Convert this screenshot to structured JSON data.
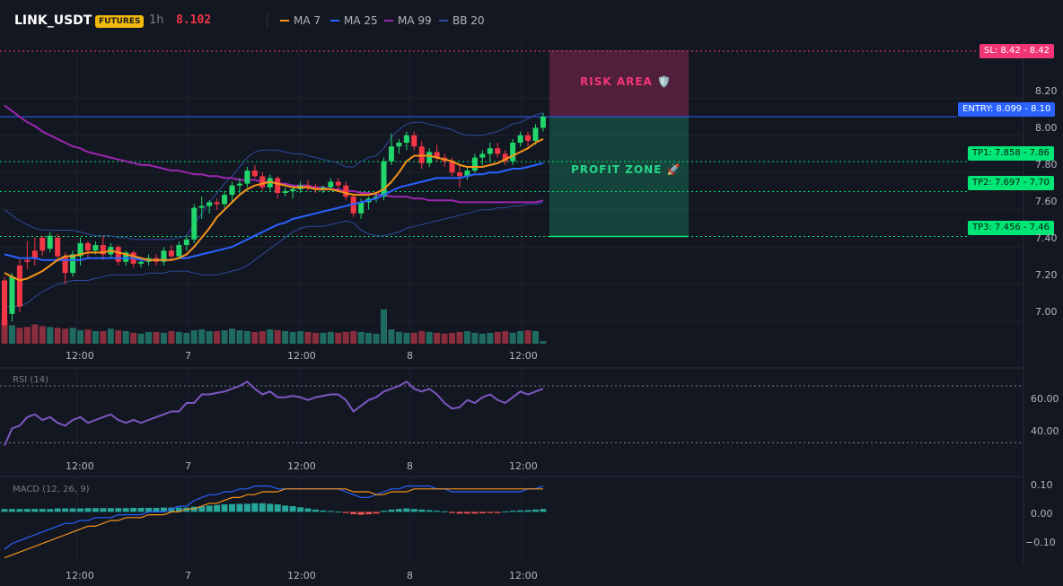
{
  "header": {
    "symbol": "LINK_USDT",
    "badge": "FUTURES",
    "timeframe": "1h",
    "last_price": "8.102",
    "legend": [
      {
        "label": "MA 7",
        "color": "#f7931a"
      },
      {
        "label": "MA 25",
        "color": "#2962ff"
      },
      {
        "label": "MA 99",
        "color": "#9c27b0"
      },
      {
        "label": "BB 20",
        "color": "#2e4a9e"
      }
    ]
  },
  "colors": {
    "background": "#131722",
    "up": "#22d66b",
    "down": "#f23645",
    "vol_up": "#1f6b60",
    "vol_down": "#8a2d3c",
    "grid": "#1e222d"
  },
  "price_axis": {
    "ticks": [
      "8.20",
      "8.00",
      "7.80",
      "7.60",
      "7.40",
      "7.20",
      "7.00"
    ],
    "min": 6.88,
    "max": 8.5
  },
  "time_axis": {
    "ticks": [
      "12:00",
      "7",
      "12:00",
      "8",
      "12:00"
    ]
  },
  "annotations": {
    "sl": {
      "text": "SL: 8.42",
      "axis": "8.42",
      "price": 8.42,
      "color": "#f23675"
    },
    "entry": {
      "text": "ENTRY: 8.099",
      "axis": "8.10",
      "price": 8.099,
      "color": "#2962ff"
    },
    "tp1": {
      "text": "TP1: 7.858",
      "axis": "7.86",
      "price": 7.858,
      "color": "#00e676"
    },
    "tp2": {
      "text": "TP2: 7.697",
      "axis": "7.70",
      "price": 7.697,
      "color": "#00e676"
    },
    "tp3": {
      "text": "TP3: 7.456",
      "axis": "7.46",
      "price": 7.456,
      "color": "#00e676"
    },
    "risk_label": "RISK AREA 🛡️",
    "profit_label": "PROFIT ZONE 🚀"
  },
  "rsi": {
    "label": "RSI (14)",
    "ticks": [
      "60.00",
      "40.00"
    ],
    "min": 22,
    "max": 82,
    "overbought": 70,
    "oversold": 30
  },
  "macd": {
    "label": "MACD (12, 26, 9)",
    "ticks": [
      "0.10",
      "0.00",
      "−0.10"
    ],
    "min": -0.18,
    "max": 0.12
  },
  "chart_data": {
    "type": "candlestick",
    "series": [
      {
        "name": "LINK_USDT",
        "ohlc": [
          [
            7.22,
            7.24,
            6.96,
            6.98
          ],
          [
            7.04,
            7.26,
            7.0,
            7.24
          ],
          [
            7.3,
            7.34,
            7.05,
            7.08
          ],
          [
            7.33,
            7.43,
            7.28,
            7.32
          ],
          [
            7.38,
            7.45,
            7.3,
            7.34
          ],
          [
            7.45,
            7.46,
            7.35,
            7.38
          ],
          [
            7.39,
            7.48,
            7.37,
            7.46
          ],
          [
            7.45,
            7.47,
            7.32,
            7.35
          ],
          [
            7.35,
            7.37,
            7.2,
            7.26
          ],
          [
            7.26,
            7.38,
            7.24,
            7.36
          ],
          [
            7.35,
            7.45,
            7.3,
            7.42
          ],
          [
            7.42,
            7.43,
            7.34,
            7.38
          ],
          [
            7.38,
            7.43,
            7.36,
            7.41
          ],
          [
            7.41,
            7.46,
            7.33,
            7.36
          ],
          [
            7.36,
            7.42,
            7.34,
            7.4
          ],
          [
            7.4,
            7.41,
            7.3,
            7.32
          ],
          [
            7.32,
            7.38,
            7.3,
            7.37
          ],
          [
            7.37,
            7.38,
            7.29,
            7.31
          ],
          [
            7.31,
            7.34,
            7.29,
            7.32
          ],
          [
            7.32,
            7.36,
            7.3,
            7.34
          ],
          [
            7.34,
            7.36,
            7.3,
            7.32
          ],
          [
            7.32,
            7.4,
            7.3,
            7.38
          ],
          [
            7.38,
            7.41,
            7.33,
            7.35
          ],
          [
            7.35,
            7.43,
            7.34,
            7.41
          ],
          [
            7.41,
            7.46,
            7.38,
            7.44
          ],
          [
            7.44,
            7.63,
            7.42,
            7.61
          ],
          [
            7.61,
            7.67,
            7.55,
            7.62
          ],
          [
            7.62,
            7.65,
            7.58,
            7.64
          ],
          [
            7.64,
            7.66,
            7.6,
            7.63
          ],
          [
            7.63,
            7.7,
            7.61,
            7.68
          ],
          [
            7.68,
            7.75,
            7.64,
            7.73
          ],
          [
            7.73,
            7.77,
            7.68,
            7.74
          ],
          [
            7.74,
            7.83,
            7.72,
            7.81
          ],
          [
            7.81,
            7.84,
            7.77,
            7.78
          ],
          [
            7.78,
            7.8,
            7.7,
            7.72
          ],
          [
            7.72,
            7.79,
            7.7,
            7.77
          ],
          [
            7.77,
            7.78,
            7.66,
            7.69
          ],
          [
            7.69,
            7.72,
            7.67,
            7.7
          ],
          [
            7.7,
            7.73,
            7.66,
            7.71
          ],
          [
            7.71,
            7.75,
            7.69,
            7.73
          ],
          [
            7.73,
            7.76,
            7.7,
            7.72
          ],
          [
            7.72,
            7.74,
            7.69,
            7.71
          ],
          [
            7.71,
            7.73,
            7.69,
            7.72
          ],
          [
            7.72,
            7.77,
            7.7,
            7.75
          ],
          [
            7.75,
            7.77,
            7.7,
            7.73
          ],
          [
            7.73,
            7.75,
            7.65,
            7.67
          ],
          [
            7.67,
            7.69,
            7.56,
            7.58
          ],
          [
            7.58,
            7.66,
            7.55,
            7.64
          ],
          [
            7.64,
            7.67,
            7.6,
            7.66
          ],
          [
            7.66,
            7.69,
            7.64,
            7.67
          ],
          [
            7.67,
            7.88,
            7.65,
            7.86
          ],
          [
            7.86,
            8.01,
            7.84,
            7.94
          ],
          [
            7.94,
            7.98,
            7.9,
            7.96
          ],
          [
            7.96,
            8.02,
            7.92,
            8.0
          ],
          [
            8.0,
            8.02,
            7.92,
            7.94
          ],
          [
            7.94,
            7.97,
            7.82,
            7.85
          ],
          [
            7.85,
            7.93,
            7.83,
            7.91
          ],
          [
            7.91,
            7.95,
            7.86,
            7.88
          ],
          [
            7.88,
            7.9,
            7.83,
            7.86
          ],
          [
            7.86,
            7.88,
            7.78,
            7.8
          ],
          [
            7.8,
            7.84,
            7.72,
            7.78
          ],
          [
            7.78,
            7.83,
            7.76,
            7.81
          ],
          [
            7.81,
            7.9,
            7.8,
            7.88
          ],
          [
            7.88,
            7.92,
            7.84,
            7.9
          ],
          [
            7.9,
            7.96,
            7.86,
            7.93
          ],
          [
            7.93,
            7.96,
            7.88,
            7.9
          ],
          [
            7.9,
            7.92,
            7.84,
            7.86
          ],
          [
            7.86,
            7.98,
            7.84,
            7.96
          ],
          [
            7.96,
            8.02,
            7.94,
            8.0
          ],
          [
            8.0,
            8.02,
            7.94,
            7.97
          ],
          [
            7.97,
            8.06,
            7.95,
            8.04
          ],
          [
            8.04,
            8.12,
            8.02,
            8.1
          ]
        ]
      }
    ],
    "volume": [
      58,
      44,
      38,
      40,
      46,
      42,
      40,
      38,
      36,
      38,
      32,
      34,
      30,
      30,
      36,
      32,
      30,
      26,
      24,
      28,
      28,
      26,
      30,
      28,
      26,
      32,
      34,
      30,
      30,
      32,
      36,
      32,
      30,
      28,
      30,
      34,
      32,
      30,
      28,
      30,
      28,
      26,
      26,
      28,
      26,
      28,
      30,
      28,
      26,
      24,
      82,
      34,
      28,
      26,
      26,
      30,
      28,
      26,
      24,
      26,
      28,
      30,
      26,
      24,
      26,
      28,
      30,
      26,
      30,
      32,
      30,
      6
    ],
    "ma7": [
      7.26,
      7.24,
      7.22,
      7.23,
      7.25,
      7.27,
      7.3,
      7.33,
      7.35,
      7.35,
      7.36,
      7.37,
      7.37,
      7.37,
      7.38,
      7.37,
      7.36,
      7.35,
      7.34,
      7.33,
      7.33,
      7.33,
      7.33,
      7.34,
      7.36,
      7.4,
      7.45,
      7.5,
      7.56,
      7.6,
      7.64,
      7.68,
      7.71,
      7.73,
      7.74,
      7.75,
      7.74,
      7.73,
      7.72,
      7.72,
      7.72,
      7.71,
      7.71,
      7.71,
      7.7,
      7.69,
      7.68,
      7.68,
      7.68,
      7.69,
      7.71,
      7.75,
      7.8,
      7.86,
      7.89,
      7.89,
      7.89,
      7.88,
      7.87,
      7.86,
      7.84,
      7.83,
      7.83,
      7.83,
      7.84,
      7.85,
      7.87,
      7.89,
      7.91,
      7.93,
      7.96,
      7.98
    ],
    "ma25": [
      7.36,
      7.35,
      7.34,
      7.34,
      7.34,
      7.33,
      7.33,
      7.33,
      7.33,
      7.33,
      7.33,
      7.34,
      7.34,
      7.34,
      7.34,
      7.34,
      7.34,
      7.34,
      7.33,
      7.33,
      7.33,
      7.33,
      7.33,
      7.34,
      7.34,
      7.35,
      7.36,
      7.37,
      7.38,
      7.39,
      7.4,
      7.42,
      7.44,
      7.46,
      7.48,
      7.5,
      7.52,
      7.53,
      7.55,
      7.56,
      7.57,
      7.58,
      7.59,
      7.6,
      7.61,
      7.62,
      7.63,
      7.64,
      7.65,
      7.66,
      7.68,
      7.7,
      7.72,
      7.73,
      7.74,
      7.75,
      7.76,
      7.77,
      7.77,
      7.77,
      7.77,
      7.78,
      7.79,
      7.79,
      7.8,
      7.8,
      7.81,
      7.82,
      7.82,
      7.83,
      7.84,
      7.85
    ],
    "ma99": [
      8.16,
      8.13,
      8.1,
      8.07,
      8.05,
      8.02,
      8.0,
      7.98,
      7.96,
      7.94,
      7.93,
      7.91,
      7.9,
      7.89,
      7.88,
      7.87,
      7.86,
      7.85,
      7.84,
      7.84,
      7.83,
      7.82,
      7.81,
      7.81,
      7.8,
      7.79,
      7.79,
      7.78,
      7.78,
      7.77,
      7.77,
      7.76,
      7.76,
      7.76,
      7.75,
      7.75,
      7.74,
      7.74,
      7.73,
      7.73,
      7.73,
      7.72,
      7.72,
      7.71,
      7.71,
      7.7,
      7.7,
      7.69,
      7.69,
      7.68,
      7.68,
      7.67,
      7.67,
      7.67,
      7.66,
      7.66,
      7.65,
      7.65,
      7.65,
      7.65,
      7.64,
      7.64,
      7.64,
      7.64,
      7.64,
      7.64,
      7.64,
      7.64,
      7.64,
      7.64,
      7.64,
      7.65
    ],
    "bb_upper": [
      7.6,
      7.57,
      7.54,
      7.52,
      7.5,
      7.49,
      7.49,
      7.49,
      7.49,
      7.49,
      7.48,
      7.47,
      7.46,
      7.46,
      7.46,
      7.45,
      7.45,
      7.44,
      7.44,
      7.44,
      7.44,
      7.44,
      7.44,
      7.45,
      7.46,
      7.52,
      7.58,
      7.64,
      7.69,
      7.74,
      7.78,
      7.83,
      7.88,
      7.91,
      7.92,
      7.92,
      7.92,
      7.91,
      7.9,
      7.9,
      7.89,
      7.88,
      7.87,
      7.86,
      7.85,
      7.83,
      7.83,
      7.86,
      7.88,
      7.89,
      7.93,
      7.99,
      8.03,
      8.06,
      8.07,
      8.07,
      8.06,
      8.05,
      8.04,
      8.03,
      8.01,
      8.0,
      8.0,
      8.0,
      8.01,
      8.02,
      8.04,
      8.06,
      8.07,
      8.09,
      8.11,
      8.12
    ],
    "bb_lower": [
      7.08,
      7.08,
      7.08,
      7.1,
      7.13,
      7.16,
      7.18,
      7.2,
      7.21,
      7.22,
      7.22,
      7.22,
      7.23,
      7.24,
      7.25,
      7.25,
      7.25,
      7.25,
      7.25,
      7.26,
      7.26,
      7.26,
      7.27,
      7.27,
      7.27,
      7.26,
      7.25,
      7.25,
      7.25,
      7.26,
      7.27,
      7.28,
      7.3,
      7.33,
      7.36,
      7.39,
      7.42,
      7.45,
      7.48,
      7.5,
      7.51,
      7.51,
      7.51,
      7.52,
      7.53,
      7.54,
      7.53,
      7.49,
      7.47,
      7.46,
      7.46,
      7.47,
      7.48,
      7.5,
      7.51,
      7.52,
      7.53,
      7.54,
      7.55,
      7.56,
      7.57,
      7.58,
      7.59,
      7.6,
      7.6,
      7.61,
      7.61,
      7.62,
      7.62,
      7.63,
      7.63,
      7.64
    ],
    "rsi": [
      28,
      40,
      42,
      48,
      50,
      46,
      48,
      44,
      42,
      46,
      48,
      44,
      46,
      48,
      50,
      46,
      44,
      46,
      44,
      46,
      48,
      50,
      52,
      52,
      58,
      58,
      64,
      64,
      65,
      66,
      68,
      70,
      73,
      68,
      64,
      66,
      62,
      62,
      63,
      62,
      60,
      62,
      63,
      64,
      64,
      60,
      52,
      56,
      60,
      62,
      66,
      68,
      70,
      73,
      68,
      66,
      68,
      64,
      58,
      54,
      55,
      60,
      58,
      62,
      64,
      60,
      58,
      62,
      66,
      64,
      66,
      68
    ],
    "macd": [
      -0.13,
      -0.11,
      -0.1,
      -0.09,
      -0.08,
      -0.07,
      -0.06,
      -0.05,
      -0.04,
      -0.04,
      -0.03,
      -0.03,
      -0.02,
      -0.02,
      -0.02,
      -0.01,
      -0.01,
      -0.01,
      -0.01,
      0.0,
      0.0,
      0.0,
      0.01,
      0.02,
      0.02,
      0.04,
      0.05,
      0.06,
      0.06,
      0.07,
      0.07,
      0.08,
      0.08,
      0.09,
      0.09,
      0.09,
      0.08,
      0.08,
      0.08,
      0.08,
      0.08,
      0.08,
      0.08,
      0.08,
      0.08,
      0.07,
      0.06,
      0.05,
      0.05,
      0.06,
      0.07,
      0.08,
      0.08,
      0.09,
      0.09,
      0.09,
      0.09,
      0.08,
      0.08,
      0.07,
      0.07,
      0.07,
      0.07,
      0.07,
      0.07,
      0.07,
      0.07,
      0.07,
      0.07,
      0.08,
      0.08,
      0.09
    ],
    "signal": [
      -0.16,
      -0.15,
      -0.14,
      -0.13,
      -0.12,
      -0.11,
      -0.1,
      -0.09,
      -0.08,
      -0.07,
      -0.06,
      -0.05,
      -0.05,
      -0.04,
      -0.03,
      -0.03,
      -0.02,
      -0.02,
      -0.02,
      -0.01,
      -0.01,
      -0.01,
      0.0,
      0.0,
      0.01,
      0.01,
      0.02,
      0.03,
      0.03,
      0.04,
      0.05,
      0.05,
      0.06,
      0.06,
      0.07,
      0.07,
      0.07,
      0.08,
      0.08,
      0.08,
      0.08,
      0.08,
      0.08,
      0.08,
      0.08,
      0.08,
      0.07,
      0.07,
      0.07,
      0.06,
      0.06,
      0.07,
      0.07,
      0.07,
      0.08,
      0.08,
      0.08,
      0.08,
      0.08,
      0.08,
      0.08,
      0.08,
      0.08,
      0.08,
      0.08,
      0.08,
      0.08,
      0.08,
      0.08,
      0.08,
      0.08,
      0.08
    ],
    "hist": [
      0.01,
      0.01,
      0.01,
      0.01,
      0.01,
      0.01,
      0.01,
      0.012,
      0.012,
      0.012,
      0.012,
      0.013,
      0.013,
      0.013,
      0.013,
      0.013,
      0.013,
      0.014,
      0.014,
      0.014,
      0.014,
      0.015,
      0.015,
      0.015,
      0.015,
      0.018,
      0.02,
      0.022,
      0.024,
      0.026,
      0.027,
      0.028,
      0.028,
      0.03,
      0.03,
      0.028,
      0.026,
      0.022,
      0.02,
      0.016,
      0.012,
      0.008,
      0.005,
      0.003,
      0.001,
      -0.004,
      -0.008,
      -0.01,
      -0.008,
      -0.006,
      0.004,
      0.008,
      0.01,
      0.012,
      0.01,
      0.008,
      0.006,
      0.004,
      0.002,
      -0.004,
      -0.006,
      -0.006,
      -0.006,
      -0.005,
      -0.004,
      -0.004,
      0.002,
      0.004,
      0.005,
      0.006,
      0.008,
      0.01
    ]
  }
}
